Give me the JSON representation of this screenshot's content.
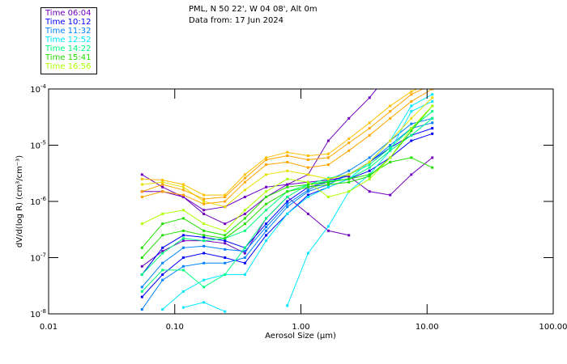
{
  "header": {
    "location": "PML, N 50 22', W 04 08', Alt 0m",
    "date": "Data from: 17 Jun 2024"
  },
  "legend": [
    {
      "label": "Time 06:04",
      "color": "#7000c0"
    },
    {
      "label": "Time 10:12",
      "color": "#0000ff"
    },
    {
      "label": "Time 11:32",
      "color": "#0080ff"
    },
    {
      "label": "Time 12:52",
      "color": "#00e8ff"
    },
    {
      "label": "Time 14:22",
      "color": "#00ff80"
    },
    {
      "label": "Time 15:41",
      "color": "#20e000"
    },
    {
      "label": "Time 16:56",
      "color": "#b0ff00"
    }
  ],
  "chart_data": {
    "type": "line",
    "xscale": "log",
    "yscale": "log",
    "xlim": [
      0.01,
      100
    ],
    "ylim": [
      1e-08,
      0.0001
    ],
    "xlabel": "Aerosol Size (µm)",
    "ylabel": "dV/d(log R) (cm³/cm⁻³)",
    "xticks": [
      "0.01",
      "0.10",
      "1.00",
      "10.00",
      "100.00"
    ],
    "xtick_values": [
      0.01,
      0.1,
      1,
      10,
      100
    ],
    "yticks": [
      {
        "base": "10",
        "exp": "-4",
        "v": 0.0001
      },
      {
        "base": "10",
        "exp": "-5",
        "v": 1e-05
      },
      {
        "base": "10",
        "exp": "-6",
        "v": 1e-06
      },
      {
        "base": "10",
        "exp": "-7",
        "v": 1e-07
      },
      {
        "base": "10",
        "exp": "-8",
        "v": 1e-08
      }
    ],
    "x": [
      0.055,
      0.08,
      0.117,
      0.17,
      0.25,
      0.36,
      0.53,
      0.78,
      1.14,
      1.65,
      2.4,
      3.5,
      5.1,
      7.5,
      11.0
    ],
    "series": [
      {
        "color": "#7000c0",
        "values": [
          3e-06,
          1.8e-06,
          1.2e-06,
          6e-07,
          4e-07,
          6e-07,
          1.2e-06,
          2e-06,
          3e-06,
          1.2e-05,
          3e-05,
          7e-05,
          0.0002,
          null,
          null
        ]
      },
      {
        "color": "#7000c0",
        "values": [
          7e-08,
          1.3e-07,
          2e-07,
          2e-07,
          1.8e-07,
          1.2e-07,
          5e-07,
          1.2e-06,
          6e-07,
          3e-07,
          2.5e-07,
          null,
          null,
          null,
          null
        ]
      },
      {
        "color": "#7000c0",
        "values": [
          1.5e-06,
          1.5e-06,
          1.2e-06,
          7e-07,
          8e-07,
          1.2e-06,
          1.8e-06,
          2e-06,
          2.2e-06,
          2.4e-06,
          2.8e-06,
          1.5e-06,
          1.3e-06,
          3e-06,
          6e-06
        ]
      },
      {
        "color": "#0000ff",
        "values": [
          2e-08,
          5e-08,
          1e-07,
          1.2e-07,
          1e-07,
          8e-08,
          2.5e-07,
          6e-07,
          1.3e-06,
          1.8e-06,
          2.5e-06,
          3.5e-06,
          6e-06,
          1.2e-05,
          1.6e-05
        ]
      },
      {
        "color": "#0000ff",
        "values": [
          5e-08,
          1.5e-07,
          2.5e-07,
          2.3e-07,
          2e-07,
          1.5e-07,
          4e-07,
          1e-06,
          1.8e-06,
          2.2e-06,
          3e-06,
          5e-06,
          9e-06,
          1.5e-05,
          2e-05
        ]
      },
      {
        "color": "#0080ff",
        "values": [
          1.2e-08,
          4e-08,
          7e-08,
          8e-08,
          8e-08,
          1e-07,
          3e-07,
          8e-07,
          1.5e-06,
          2e-06,
          3e-06,
          5e-06,
          1e-05,
          2e-05,
          2.5e-05
        ]
      },
      {
        "color": "#0080ff",
        "values": [
          3e-08,
          8e-08,
          1.5e-07,
          1.6e-07,
          1.4e-07,
          1.3e-07,
          3.5e-07,
          9e-07,
          1.6e-06,
          2.4e-06,
          3.5e-06,
          6e-06,
          1.2e-05,
          2.4e-05,
          3e-05
        ]
      },
      {
        "color": "#00e8ff",
        "values": [
          null,
          1.2e-08,
          2.5e-08,
          4e-08,
          5e-08,
          5e-08,
          2e-07,
          6e-07,
          1.2e-06,
          1.8e-06,
          2.5e-06,
          5e-06,
          1.2e-05,
          5e-05,
          8e-05
        ]
      },
      {
        "color": "#00e8ff",
        "values": [
          null,
          null,
          1.3e-08,
          1.6e-08,
          1.1e-08,
          null,
          null,
          null,
          null,
          null,
          null,
          null,
          null,
          null,
          null
        ]
      },
      {
        "color": "#00e8ff",
        "values": [
          null,
          null,
          null,
          null,
          null,
          null,
          null,
          1.4e-08,
          1.2e-07,
          3.6e-07,
          1.5e-06,
          3e-06,
          8e-06,
          4e-05,
          6e-05
        ]
      },
      {
        "color": "#00ff80",
        "values": [
          5e-08,
          1.2e-07,
          2.2e-07,
          2e-07,
          2.2e-07,
          3e-07,
          7e-07,
          1.5e-06,
          2e-06,
          2.3e-06,
          2.5e-06,
          4e-06,
          8e-06,
          1.5e-05,
          3e-05
        ]
      },
      {
        "color": "#00ff80",
        "values": [
          2.5e-08,
          6e-08,
          6e-08,
          3e-08,
          5e-08,
          1.5e-07,
          5e-07,
          1.2e-06,
          2e-06,
          2.6e-06,
          3e-06,
          4.5e-06,
          9e-06,
          2e-05,
          4e-05
        ]
      },
      {
        "color": "#20e000",
        "values": [
          1.5e-07,
          4e-07,
          5e-07,
          3e-07,
          2.5e-07,
          5e-07,
          1.2e-06,
          1.8e-06,
          2e-06,
          2.2e-06,
          2.5e-06,
          3e-06,
          5e-06,
          6e-06,
          4e-06
        ]
      },
      {
        "color": "#20e000",
        "values": [
          1e-07,
          2.5e-07,
          3e-07,
          2.5e-07,
          2.2e-07,
          4e-07,
          9e-07,
          1.5e-06,
          1.8e-06,
          2e-06,
          2.2e-06,
          2.8e-06,
          6e-06,
          1.8e-05,
          5e-05
        ]
      },
      {
        "color": "#b0ff00",
        "values": [
          4e-07,
          6e-07,
          7e-07,
          4e-07,
          3e-07,
          7e-07,
          1.5e-06,
          2.5e-06,
          2.2e-06,
          1.2e-06,
          1.5e-06,
          2.5e-06,
          6e-06,
          2e-05,
          5e-05
        ]
      },
      {
        "color": "#e8e000",
        "values": [
          2e-06,
          2.2e-06,
          1.8e-06,
          1e-06,
          8e-07,
          1.6e-06,
          3e-06,
          3.5e-06,
          3e-06,
          2.5e-06,
          3e-06,
          5e-06,
          1.2e-05,
          3e-05,
          7e-05
        ]
      },
      {
        "color": "#ffa500",
        "values": [
          1.2e-06,
          1.5e-06,
          1.3e-06,
          9e-07,
          1e-06,
          2.2e-06,
          4.5e-06,
          5e-06,
          4e-06,
          4.5e-06,
          8e-06,
          1.5e-05,
          3e-05,
          6e-05,
          0.0001
        ]
      },
      {
        "color": "#ffa500",
        "values": [
          1.5e-06,
          2e-06,
          1.6e-06,
          1.1e-06,
          1.2e-06,
          2.6e-06,
          5.5e-06,
          6.5e-06,
          5.5e-06,
          6e-06,
          1.1e-05,
          2e-05,
          4e-05,
          8e-05,
          0.00012
        ]
      },
      {
        "color": "#ffc000",
        "values": [
          2.5e-06,
          2.4e-06,
          2e-06,
          1.3e-06,
          1.3e-06,
          3e-06,
          6e-06,
          7.5e-06,
          6.5e-06,
          7e-06,
          1.3e-05,
          2.5e-05,
          5e-05,
          9e-05,
          0.00013
        ]
      }
    ]
  }
}
